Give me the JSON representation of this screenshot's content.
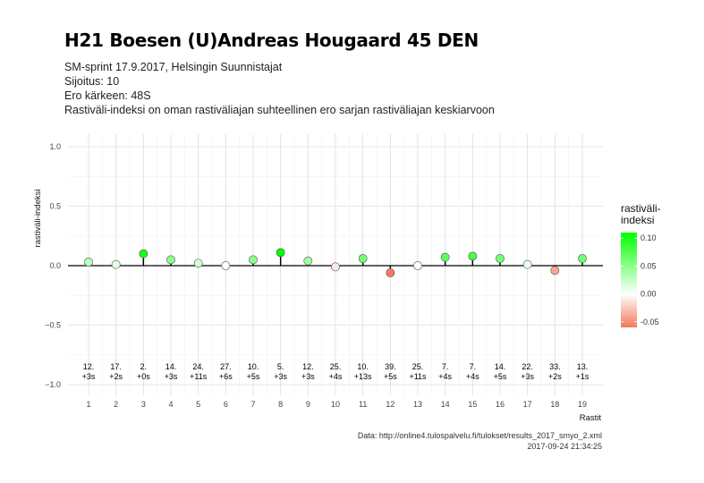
{
  "header": {
    "title": "H21 Boesen (U)Andreas Hougaard 45 DEN",
    "subtitle_lines": [
      "SM-sprint 17.9.2017, Helsingin Suunnistajat",
      "Sijoitus: 10",
      "Ero kärkeen: 48S",
      "Rastiväli-indeksi on oman rastiväliajan suhteellinen ero sarjan rastiväliajan keskiarvoon"
    ]
  },
  "caption": {
    "source": "Data: http://online4.tulospalvelu.fi/tulokset/results_2017_smyo_2.xml",
    "timestamp": "2017-09-24 21:34:25"
  },
  "colors": {
    "positive": "#00ff00",
    "neutral": "#ffffff",
    "negative": "#f4795b"
  },
  "chart_data": {
    "type": "scatter",
    "title": "H21 Boesen (U)Andreas Hougaard 45 DEN",
    "xlabel": "Rastit",
    "ylabel": "rastiväli-indeksi",
    "ylim": [
      -1.0,
      1.0
    ],
    "yticks": [
      -1.0,
      -0.5,
      0.0,
      0.5,
      1.0
    ],
    "ytick_labels": [
      "−1.0",
      "−0.5",
      "0.0",
      "0.5",
      "1.0"
    ],
    "x": [
      1,
      2,
      3,
      4,
      5,
      6,
      7,
      8,
      9,
      10,
      11,
      12,
      13,
      14,
      15,
      16,
      17,
      18,
      19
    ],
    "y": [
      0.03,
      0.01,
      0.1,
      0.05,
      0.02,
      0.0,
      0.05,
      0.11,
      0.04,
      -0.01,
      0.06,
      -0.06,
      0.0,
      0.07,
      0.08,
      0.06,
      0.01,
      -0.04,
      0.06
    ],
    "rank_labels": [
      "12.",
      "17.",
      "2.",
      "14.",
      "24.",
      "27.",
      "10.",
      "5.",
      "12.",
      "25.",
      "10.",
      "39.",
      "25.",
      "7.",
      "7.",
      "14.",
      "22.",
      "33.",
      "13."
    ],
    "loss_labels": [
      "+3s",
      "+2s",
      "+0s",
      "+3s",
      "+11s",
      "+6s",
      "+5s",
      "+3s",
      "+3s",
      "+4s",
      "+13s",
      "+5s",
      "+11s",
      "+4s",
      "+4s",
      "+5s",
      "+3s",
      "+2s",
      "+1s"
    ],
    "grid": true,
    "legend": {
      "title_lines": [
        "rastiväli-",
        "indeksi"
      ],
      "labels": [
        "0.10",
        "0.05",
        "0.00",
        "-0.05"
      ],
      "values": [
        0.1,
        0.05,
        0.0,
        -0.05
      ],
      "range": [
        -0.06,
        0.11
      ],
      "placement": "right"
    }
  }
}
